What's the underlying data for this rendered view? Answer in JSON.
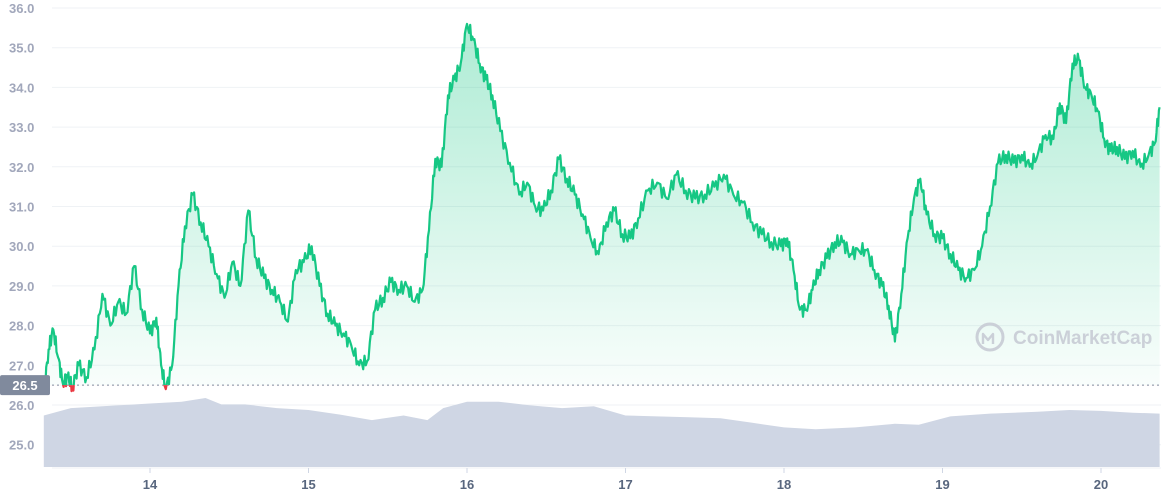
{
  "chart_data": {
    "type": "area",
    "title": "",
    "xlabel": "",
    "ylabel": "",
    "ylim": [
      24.5,
      36.0
    ],
    "y_ticks": [
      "25.0",
      "26.0",
      "27.0",
      "28.0",
      "29.0",
      "30.0",
      "31.0",
      "32.0",
      "33.0",
      "34.0",
      "35.0",
      "36.0"
    ],
    "x_ticks": [
      "14",
      "15",
      "16",
      "17",
      "18",
      "19",
      "20"
    ],
    "x_range": [
      13.33,
      20.37
    ],
    "grid": true,
    "legend": "none",
    "baseline": {
      "value": 26.5,
      "label": "26.5"
    },
    "colors": {
      "line_above": "#16c784",
      "line_below": "#ea3943",
      "fill_top": "#16c784",
      "volume": "#cfd6e4",
      "baseline_badge": "#808a9d"
    },
    "series": [
      {
        "values": [
          [
            13.33,
            26.3
          ],
          [
            13.36,
            27.4
          ],
          [
            13.39,
            27.9
          ],
          [
            13.42,
            27.2
          ],
          [
            13.45,
            26.55
          ],
          [
            13.48,
            26.7
          ],
          [
            13.51,
            26.45
          ],
          [
            13.55,
            27.0
          ],
          [
            13.6,
            26.7
          ],
          [
            13.65,
            27.4
          ],
          [
            13.7,
            28.8
          ],
          [
            13.75,
            28.0
          ],
          [
            13.8,
            28.6
          ],
          [
            13.85,
            28.3
          ],
          [
            13.9,
            29.5
          ],
          [
            13.95,
            28.4
          ],
          [
            14.0,
            27.8
          ],
          [
            14.04,
            28.2
          ],
          [
            14.07,
            27.0
          ],
          [
            14.1,
            26.4
          ],
          [
            14.14,
            27.0
          ],
          [
            14.18,
            29.0
          ],
          [
            14.22,
            30.5
          ],
          [
            14.27,
            31.3
          ],
          [
            14.32,
            30.6
          ],
          [
            14.37,
            30.0
          ],
          [
            14.42,
            29.3
          ],
          [
            14.47,
            28.7
          ],
          [
            14.52,
            29.6
          ],
          [
            14.57,
            29.0
          ],
          [
            14.62,
            30.9
          ],
          [
            14.67,
            29.7
          ],
          [
            14.72,
            29.2
          ],
          [
            14.77,
            28.9
          ],
          [
            14.82,
            28.6
          ],
          [
            14.87,
            28.1
          ],
          [
            14.92,
            29.4
          ],
          [
            14.97,
            29.6
          ],
          [
            15.02,
            30.0
          ],
          [
            15.07,
            29.0
          ],
          [
            15.12,
            28.3
          ],
          [
            15.17,
            28.0
          ],
          [
            15.22,
            27.8
          ],
          [
            15.27,
            27.5
          ],
          [
            15.32,
            27.0
          ],
          [
            15.37,
            27.1
          ],
          [
            15.42,
            28.4
          ],
          [
            15.47,
            28.7
          ],
          [
            15.52,
            29.1
          ],
          [
            15.57,
            28.9
          ],
          [
            15.62,
            29.0
          ],
          [
            15.67,
            28.6
          ],
          [
            15.72,
            28.9
          ],
          [
            15.76,
            30.4
          ],
          [
            15.8,
            32.2
          ],
          [
            15.84,
            32.0
          ],
          [
            15.88,
            33.8
          ],
          [
            15.92,
            34.2
          ],
          [
            15.96,
            34.6
          ],
          [
            16.0,
            35.6
          ],
          [
            16.04,
            35.2
          ],
          [
            16.08,
            34.6
          ],
          [
            16.12,
            34.2
          ],
          [
            16.16,
            33.8
          ],
          [
            16.21,
            32.9
          ],
          [
            16.27,
            32.1
          ],
          [
            16.33,
            31.3
          ],
          [
            16.38,
            31.6
          ],
          [
            16.43,
            31.0
          ],
          [
            16.48,
            30.9
          ],
          [
            16.53,
            31.4
          ],
          [
            16.58,
            32.2
          ],
          [
            16.63,
            31.7
          ],
          [
            16.68,
            31.3
          ],
          [
            16.73,
            30.8
          ],
          [
            16.78,
            30.2
          ],
          [
            16.83,
            29.8
          ],
          [
            16.88,
            30.6
          ],
          [
            16.93,
            30.9
          ],
          [
            16.98,
            30.3
          ],
          [
            17.03,
            30.2
          ],
          [
            17.08,
            30.7
          ],
          [
            17.14,
            31.4
          ],
          [
            17.2,
            31.6
          ],
          [
            17.26,
            31.2
          ],
          [
            17.32,
            31.8
          ],
          [
            17.38,
            31.4
          ],
          [
            17.44,
            31.2
          ],
          [
            17.5,
            31.3
          ],
          [
            17.56,
            31.5
          ],
          [
            17.62,
            31.8
          ],
          [
            17.68,
            31.3
          ],
          [
            17.74,
            31.1
          ],
          [
            17.8,
            30.6
          ],
          [
            17.86,
            30.3
          ],
          [
            17.92,
            30.1
          ],
          [
            17.98,
            30.0
          ],
          [
            18.02,
            30.2
          ],
          [
            18.06,
            29.4
          ],
          [
            18.1,
            28.4
          ],
          [
            18.14,
            28.4
          ],
          [
            18.18,
            28.9
          ],
          [
            18.22,
            29.4
          ],
          [
            18.27,
            29.7
          ],
          [
            18.32,
            30.1
          ],
          [
            18.37,
            30.1
          ],
          [
            18.42,
            29.8
          ],
          [
            18.47,
            29.9
          ],
          [
            18.52,
            29.9
          ],
          [
            18.57,
            29.4
          ],
          [
            18.62,
            29.0
          ],
          [
            18.66,
            28.5
          ],
          [
            18.7,
            27.6
          ],
          [
            18.74,
            28.8
          ],
          [
            18.78,
            30.2
          ],
          [
            18.82,
            31.2
          ],
          [
            18.86,
            31.7
          ],
          [
            18.9,
            30.8
          ],
          [
            18.95,
            30.3
          ],
          [
            19.0,
            30.2
          ],
          [
            19.05,
            29.8
          ],
          [
            19.1,
            29.4
          ],
          [
            19.15,
            29.2
          ],
          [
            19.2,
            29.4
          ],
          [
            19.25,
            30.0
          ],
          [
            19.3,
            31.0
          ],
          [
            19.35,
            32.1
          ],
          [
            19.4,
            32.3
          ],
          [
            19.45,
            32.1
          ],
          [
            19.5,
            32.3
          ],
          [
            19.55,
            32.0
          ],
          [
            19.6,
            32.3
          ],
          [
            19.65,
            32.8
          ],
          [
            19.7,
            32.7
          ],
          [
            19.74,
            33.6
          ],
          [
            19.78,
            33.1
          ],
          [
            19.82,
            34.6
          ],
          [
            19.86,
            34.7
          ],
          [
            19.9,
            34.0
          ],
          [
            19.94,
            33.8
          ],
          [
            19.98,
            33.4
          ],
          [
            20.02,
            32.7
          ],
          [
            20.06,
            32.4
          ],
          [
            20.1,
            32.5
          ],
          [
            20.15,
            32.2
          ],
          [
            20.2,
            32.4
          ],
          [
            20.25,
            32.0
          ],
          [
            20.3,
            32.3
          ],
          [
            20.34,
            32.6
          ],
          [
            20.37,
            33.5
          ]
        ]
      }
    ],
    "volume_profile": [
      [
        13.33,
        0.62
      ],
      [
        13.5,
        0.78
      ],
      [
        13.7,
        0.82
      ],
      [
        14.0,
        0.88
      ],
      [
        14.2,
        0.92
      ],
      [
        14.35,
        1.0
      ],
      [
        14.45,
        0.86
      ],
      [
        14.6,
        0.86
      ],
      [
        14.8,
        0.78
      ],
      [
        15.0,
        0.74
      ],
      [
        15.2,
        0.64
      ],
      [
        15.4,
        0.52
      ],
      [
        15.6,
        0.62
      ],
      [
        15.75,
        0.52
      ],
      [
        15.85,
        0.78
      ],
      [
        16.0,
        0.92
      ],
      [
        16.2,
        0.92
      ],
      [
        16.4,
        0.84
      ],
      [
        16.6,
        0.78
      ],
      [
        16.8,
        0.82
      ],
      [
        17.0,
        0.62
      ],
      [
        17.2,
        0.6
      ],
      [
        17.4,
        0.58
      ],
      [
        17.6,
        0.56
      ],
      [
        17.8,
        0.46
      ],
      [
        18.0,
        0.36
      ],
      [
        18.2,
        0.32
      ],
      [
        18.45,
        0.36
      ],
      [
        18.7,
        0.44
      ],
      [
        18.85,
        0.42
      ],
      [
        19.05,
        0.6
      ],
      [
        19.3,
        0.66
      ],
      [
        19.6,
        0.7
      ],
      [
        19.8,
        0.74
      ],
      [
        20.0,
        0.72
      ],
      [
        20.2,
        0.68
      ],
      [
        20.37,
        0.66
      ]
    ]
  },
  "watermark": {
    "text": "CoinMarketCap"
  }
}
